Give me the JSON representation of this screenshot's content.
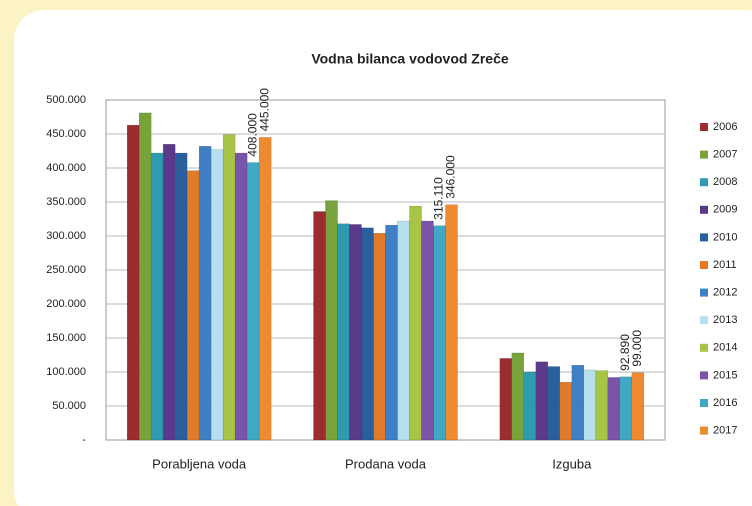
{
  "chart_data": {
    "type": "bar",
    "title": "Vodna bilanca vodovod Zreče",
    "categories": [
      "Porabljena voda",
      "Prodana voda",
      "Izguba"
    ],
    "ylim": [
      0,
      500000
    ],
    "yticks": [
      {
        "value": 0,
        "label": "-"
      },
      {
        "value": 50000,
        "label": "50.000"
      },
      {
        "value": 100000,
        "label": "100.000"
      },
      {
        "value": 150000,
        "label": "150.000"
      },
      {
        "value": 200000,
        "label": "200.000"
      },
      {
        "value": 250000,
        "label": "250.000"
      },
      {
        "value": 300000,
        "label": "300.000"
      },
      {
        "value": 350000,
        "label": "350.000"
      },
      {
        "value": 400000,
        "label": "400.000"
      },
      {
        "value": 450000,
        "label": "450.000"
      },
      {
        "value": 500000,
        "label": "500.000"
      }
    ],
    "grid": true,
    "legend": "right",
    "series": [
      {
        "name": "2006",
        "color": "#9b2d30",
        "values": [
          463000,
          336000,
          120000
        ]
      },
      {
        "name": "2007",
        "color": "#77a33a",
        "values": [
          481000,
          352000,
          128000
        ]
      },
      {
        "name": "2008",
        "color": "#2f9bb0",
        "values": [
          422000,
          318000,
          100000
        ]
      },
      {
        "name": "2009",
        "color": "#5b3a8c",
        "values": [
          435000,
          317000,
          115000
        ]
      },
      {
        "name": "2010",
        "color": "#2a5f9e",
        "values": [
          422000,
          312000,
          108000
        ]
      },
      {
        "name": "2011",
        "color": "#e07b2a",
        "values": [
          396000,
          304000,
          85000
        ]
      },
      {
        "name": "2012",
        "color": "#3f7fc4",
        "values": [
          432000,
          316000,
          110000
        ]
      },
      {
        "name": "2013",
        "color": "#b7e0ef",
        "values": [
          427000,
          322000,
          103000
        ]
      },
      {
        "name": "2014",
        "color": "#a7c447",
        "values": [
          449000,
          344000,
          102000
        ]
      },
      {
        "name": "2015",
        "color": "#7a54a8",
        "values": [
          422000,
          322000,
          92000
        ]
      },
      {
        "name": "2016",
        "color": "#3fa9c5",
        "values": [
          408000,
          315110,
          92890
        ],
        "value_labels": [
          "408.000",
          "315.110",
          "92.890"
        ]
      },
      {
        "name": "2017",
        "color": "#f08a30",
        "values": [
          445000,
          346000,
          99000
        ],
        "value_labels": [
          "445.000",
          "346.000",
          "99.000"
        ]
      }
    ]
  }
}
